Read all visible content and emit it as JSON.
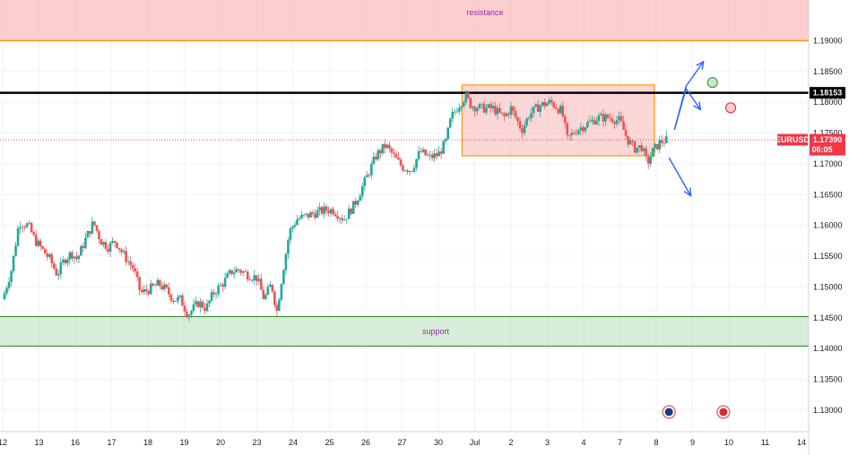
{
  "chart_data": {
    "type": "candlestick",
    "symbol": "EURUSD",
    "x_ticks": [
      "12",
      "13",
      "16",
      "17",
      "18",
      "19",
      "20",
      "23",
      "24",
      "25",
      "26",
      "27",
      "30",
      "Jul",
      "2",
      "3",
      "4",
      "7",
      "8",
      "9",
      "10",
      "11",
      "14"
    ],
    "y_ticks": [
      "1.19000",
      "1.18500",
      "1.18000",
      "1.17500",
      "1.17000",
      "1.16500",
      "1.16000",
      "1.15500",
      "1.15000",
      "1.14500",
      "1.14000",
      "1.13500",
      "1.13000"
    ],
    "y_tick_values": [
      1.19,
      1.185,
      1.18,
      1.175,
      1.17,
      1.165,
      1.16,
      1.155,
      1.15,
      1.145,
      1.14,
      1.135,
      1.13
    ],
    "ylim": [
      1.1265,
      1.1966
    ],
    "xlim_days": [
      0,
      22
    ],
    "resistance_zone": {
      "label": "resistance",
      "low": 1.19,
      "high": 1.1966,
      "color": "#f7a8a8",
      "line_color": "#ff9800"
    },
    "support_zone": {
      "label": "support",
      "low": 1.1404,
      "high": 1.1452,
      "color": "#a5d6a7",
      "line_color": "#388e3c"
    },
    "key_level": {
      "value": 1.18153,
      "label": "1.18153",
      "color": "#000000"
    },
    "current_price": {
      "value": 1.1739,
      "label": "1.17390",
      "countdown": "06:05",
      "symbol_tag": "EURUSD",
      "color": "#f23645"
    },
    "range_box": {
      "x_start": 12.65,
      "x_end": 17.95,
      "high": 1.1828,
      "low": 1.1713,
      "fill": "#f7b7b7",
      "border": "#ff9800"
    },
    "colors": {
      "up": "#26a69a",
      "down": "#ef5350",
      "grid": "#f0f3fa",
      "axis_text": "#131722",
      "arrow": "#2962ff"
    },
    "anchors": [
      [
        0,
        1.148
      ],
      [
        0.25,
        1.153
      ],
      [
        0.45,
        1.1605
      ],
      [
        0.7,
        1.16
      ],
      [
        0.9,
        1.1575
      ],
      [
        1.1,
        1.156
      ],
      [
        1.3,
        1.1545
      ],
      [
        1.5,
        1.152
      ],
      [
        1.7,
        1.1545
      ],
      [
        1.9,
        1.1555
      ],
      [
        2.05,
        1.1545
      ],
      [
        2.3,
        1.158
      ],
      [
        2.5,
        1.1605
      ],
      [
        2.7,
        1.1575
      ],
      [
        2.9,
        1.1565
      ],
      [
        3.1,
        1.1575
      ],
      [
        3.3,
        1.1555
      ],
      [
        3.6,
        1.153
      ],
      [
        3.8,
        1.149
      ],
      [
        4.0,
        1.1495
      ],
      [
        4.3,
        1.1505
      ],
      [
        4.5,
        1.1495
      ],
      [
        4.7,
        1.148
      ],
      [
        4.9,
        1.148
      ],
      [
        5.1,
        1.1455
      ],
      [
        5.4,
        1.1475
      ],
      [
        5.6,
        1.1465
      ],
      [
        5.8,
        1.149
      ],
      [
        6.05,
        1.1505
      ],
      [
        6.3,
        1.1525
      ],
      [
        6.5,
        1.1528
      ],
      [
        6.75,
        1.152
      ],
      [
        7.0,
        1.1515
      ],
      [
        7.2,
        1.148
      ],
      [
        7.4,
        1.1505
      ],
      [
        7.55,
        1.146
      ],
      [
        7.7,
        1.152
      ],
      [
        7.9,
        1.159
      ],
      [
        8.1,
        1.161
      ],
      [
        8.35,
        1.1615
      ],
      [
        8.6,
        1.162
      ],
      [
        8.9,
        1.1625
      ],
      [
        9.1,
        1.1625
      ],
      [
        9.4,
        1.161
      ],
      [
        9.7,
        1.1635
      ],
      [
        10.0,
        1.1675
      ],
      [
        10.3,
        1.1715
      ],
      [
        10.55,
        1.173
      ],
      [
        10.8,
        1.171
      ],
      [
        11.0,
        1.1695
      ],
      [
        11.25,
        1.169
      ],
      [
        11.5,
        1.172
      ],
      [
        11.75,
        1.171
      ],
      [
        12.0,
        1.1715
      ],
      [
        12.2,
        1.1735
      ],
      [
        12.35,
        1.1775
      ],
      [
        12.55,
        1.1795
      ],
      [
        12.75,
        1.181
      ],
      [
        12.9,
        1.1795
      ],
      [
        13.2,
        1.179
      ],
      [
        13.5,
        1.179
      ],
      [
        13.8,
        1.1775
      ],
      [
        14.0,
        1.179
      ],
      [
        14.3,
        1.1755
      ],
      [
        14.5,
        1.178
      ],
      [
        14.8,
        1.1795
      ],
      [
        15.1,
        1.18
      ],
      [
        15.4,
        1.1785
      ],
      [
        15.55,
        1.174
      ],
      [
        15.8,
        1.1755
      ],
      [
        16.1,
        1.1765
      ],
      [
        16.4,
        1.1775
      ],
      [
        16.7,
        1.1775
      ],
      [
        17.0,
        1.177
      ],
      [
        17.2,
        1.174
      ],
      [
        17.4,
        1.1725
      ],
      [
        17.6,
        1.1728
      ],
      [
        17.75,
        1.17
      ],
      [
        17.9,
        1.172
      ],
      [
        18.1,
        1.1735
      ],
      [
        18.3,
        1.1739
      ]
    ],
    "scenario_arrows": [
      {
        "name": "bullish-breakout",
        "points": [
          [
            18.5,
            1.1755
          ],
          [
            18.82,
            1.1826
          ],
          [
            19.3,
            1.1866
          ]
        ]
      },
      {
        "name": "retest",
        "points": [
          [
            18.5,
            1.1755
          ],
          [
            18.82,
            1.1822
          ],
          [
            19.22,
            1.1788
          ]
        ]
      },
      {
        "name": "bearish-breakdown",
        "points": [
          [
            18.35,
            1.171
          ],
          [
            18.95,
            1.1648
          ]
        ]
      }
    ],
    "markers": [
      {
        "name": "green-circle-marker",
        "x": 19.55,
        "y": 1.1832,
        "fill": "#c8e6c9",
        "stroke": "#43a047"
      },
      {
        "name": "red-circle-marker",
        "x": 20.05,
        "y": 1.1791,
        "fill": "#ffcdd2",
        "stroke": "#e53935"
      }
    ],
    "event_icons": [
      {
        "name": "event-icon-eu",
        "x": 18.35,
        "y": 1.1297,
        "color": "#1e3a8a"
      },
      {
        "name": "event-icon-us",
        "x": 19.85,
        "y": 1.1297,
        "color": "#d32f2f"
      }
    ]
  }
}
